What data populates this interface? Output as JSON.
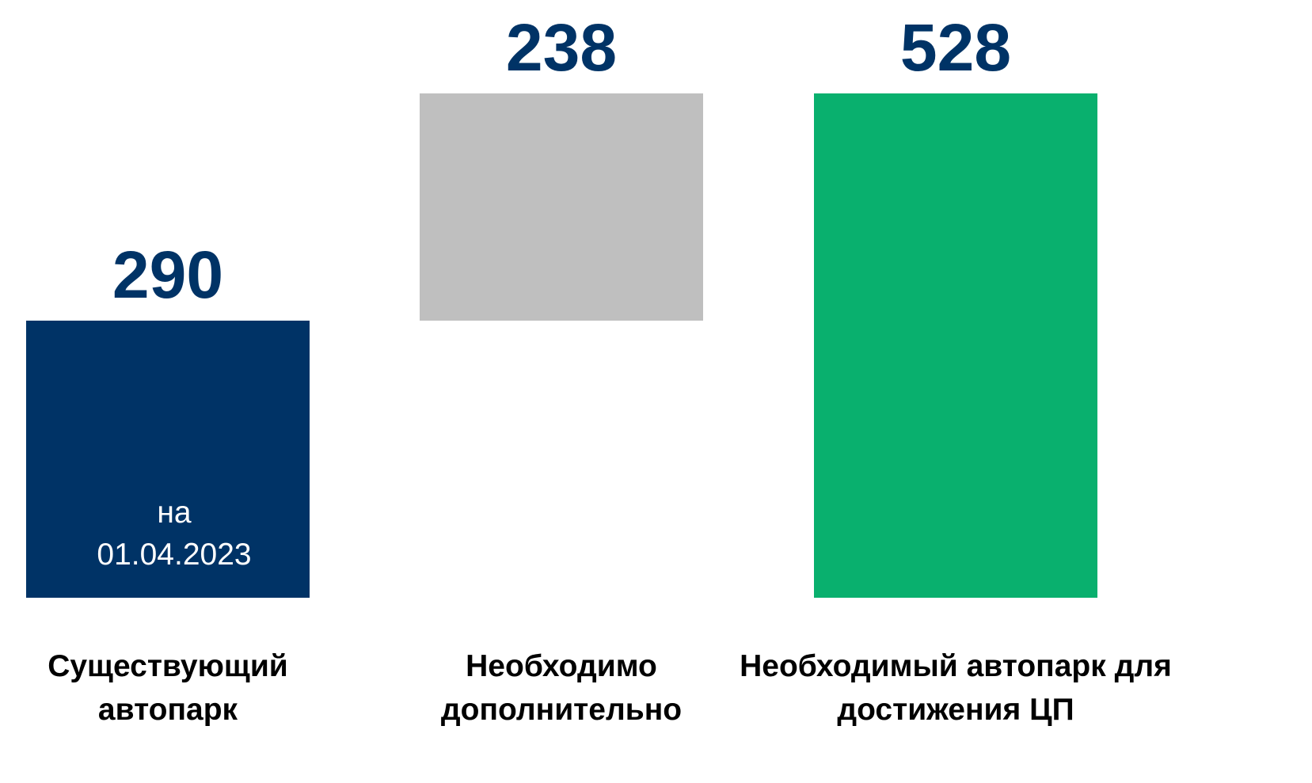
{
  "chart_data": {
    "type": "waterfall",
    "categories": [
      "Существующий автопарк",
      "Необходимо дополнительно",
      "Необходимый автопарк для достижения ЦП"
    ],
    "values": [
      290,
      238,
      528
    ],
    "measure": [
      "absolute",
      "relative",
      "total"
    ],
    "colors": [
      "#003366",
      "#bfbfbf",
      "#09b06e"
    ],
    "label_color": "#003366",
    "annotations": [
      {
        "text": "на 01.04.2023",
        "category": 0
      }
    ]
  }
}
